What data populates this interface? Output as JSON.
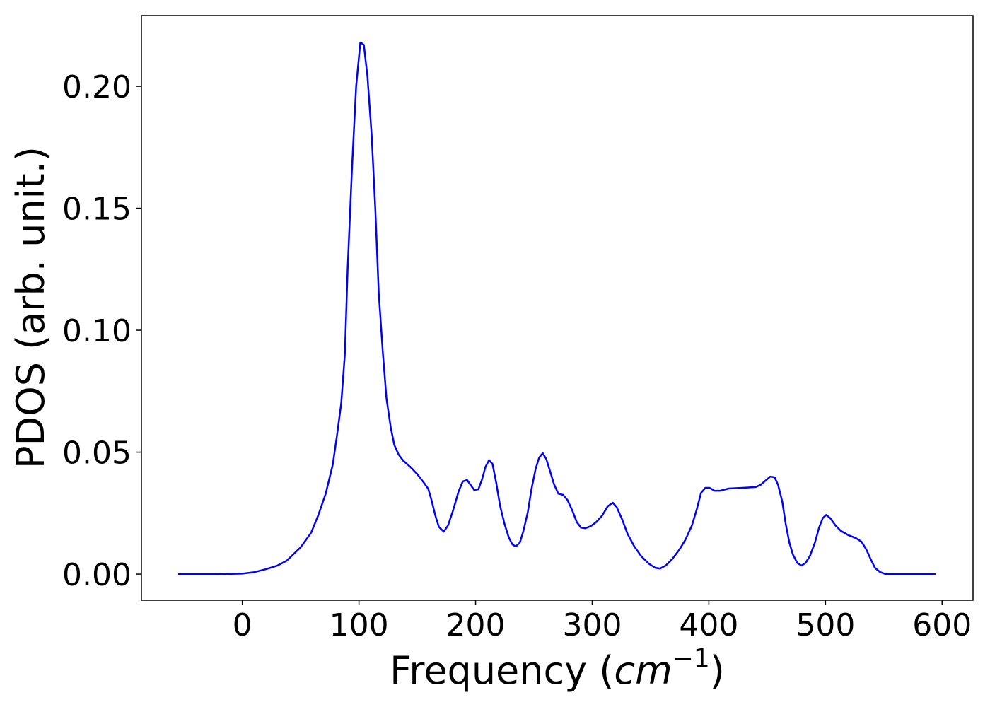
{
  "chart_data": {
    "type": "line",
    "x_label": [
      "Frequency (",
      "cm",
      "−1",
      ")"
    ],
    "y_label": "PDOS (arb. unit.)",
    "xlim": [
      -86.5,
      626.5
    ],
    "ylim": [
      -0.0107,
      0.229
    ],
    "xticks": [
      0,
      100,
      200,
      300,
      400,
      500,
      600
    ],
    "yticks": [
      {
        "value": 0,
        "label": "0.00"
      },
      0.05,
      {
        "value": 0.1,
        "label": "0.10"
      },
      0.15,
      {
        "value": 0.2,
        "label": "0.20"
      }
    ],
    "x": [
      -55,
      -20,
      0,
      10,
      20,
      30,
      38,
      50,
      59,
      65,
      71.5,
      77.6,
      81.2,
      84.8,
      87.9,
      90.3,
      93.9,
      97.6,
      101.2,
      104.2,
      107.3,
      110.9,
      114,
      117,
      120.6,
      123.6,
      127.3,
      130.3,
      134,
      138,
      144,
      150,
      156.4,
      159.4,
      162.4,
      165.5,
      168.5,
      172.7,
      176.4,
      180.6,
      185.5,
      189,
      192.7,
      195.8,
      198.8,
      202.4,
      205.5,
      208.5,
      211.5,
      214.5,
      217.6,
      221,
      224.8,
      228.5,
      231.5,
      234.5,
      238,
      241,
      244.8,
      247.9,
      251.5,
      254.5,
      257.6,
      260.6,
      263.6,
      267.3,
      270.9,
      275,
      278.8,
      283,
      286.7,
      290.3,
      294,
      298.8,
      303.6,
      308.5,
      313.3,
      317.6,
      321,
      325.5,
      330.3,
      335.8,
      341.8,
      348.5,
      354,
      358.2,
      363,
      368.5,
      374.5,
      380,
      385.5,
      389.7,
      393.3,
      397,
      400.6,
      404.8,
      409.7,
      417,
      429,
      440,
      444,
      448.5,
      452.7,
      456.4,
      459.4,
      463,
      466,
      469,
      472,
      475.8,
      479.4,
      483,
      486.7,
      491,
      494.5,
      497.6,
      500.6,
      504.2,
      508.5,
      513.3,
      520,
      526,
      530.9,
      535,
      538.8,
      542.4,
      546.7,
      551.5,
      594.5
    ],
    "series": [
      {
        "color": "#0000ff",
        "values": [
          0,
          0,
          0.0002,
          0.0008,
          0.002,
          0.0035,
          0.0055,
          0.011,
          0.017,
          0.024,
          0.033,
          0.045,
          0.057,
          0.07,
          0.09,
          0.125,
          0.165,
          0.2,
          0.218,
          0.217,
          0.204,
          0.18,
          0.15,
          0.115,
          0.09,
          0.072,
          0.06,
          0.053,
          0.049,
          0.0465,
          0.044,
          0.041,
          0.037,
          0.035,
          0.03,
          0.024,
          0.0194,
          0.0174,
          0.02,
          0.026,
          0.034,
          0.038,
          0.0386,
          0.0365,
          0.0345,
          0.0348,
          0.0388,
          0.044,
          0.0467,
          0.0452,
          0.0377,
          0.028,
          0.0206,
          0.015,
          0.0122,
          0.0113,
          0.013,
          0.0177,
          0.0255,
          0.0348,
          0.0432,
          0.0478,
          0.0496,
          0.0472,
          0.0426,
          0.0368,
          0.033,
          0.0325,
          0.0304,
          0.026,
          0.0214,
          0.0191,
          0.0188,
          0.0197,
          0.0214,
          0.024,
          0.0278,
          0.0293,
          0.0275,
          0.0226,
          0.0165,
          0.0116,
          0.0075,
          0.0043,
          0.0026,
          0.0023,
          0.0035,
          0.0061,
          0.0099,
          0.0142,
          0.02,
          0.0267,
          0.0333,
          0.0354,
          0.0354,
          0.0342,
          0.0342,
          0.0351,
          0.0354,
          0.0357,
          0.0365,
          0.0383,
          0.04,
          0.0397,
          0.0365,
          0.0296,
          0.0203,
          0.013,
          0.0081,
          0.0046,
          0.0035,
          0.0046,
          0.0075,
          0.013,
          0.0191,
          0.0229,
          0.0243,
          0.0229,
          0.02,
          0.0177,
          0.0159,
          0.0148,
          0.0133,
          0.0101,
          0.0061,
          0.0026,
          0.0009,
          0,
          0
        ]
      }
    ]
  }
}
